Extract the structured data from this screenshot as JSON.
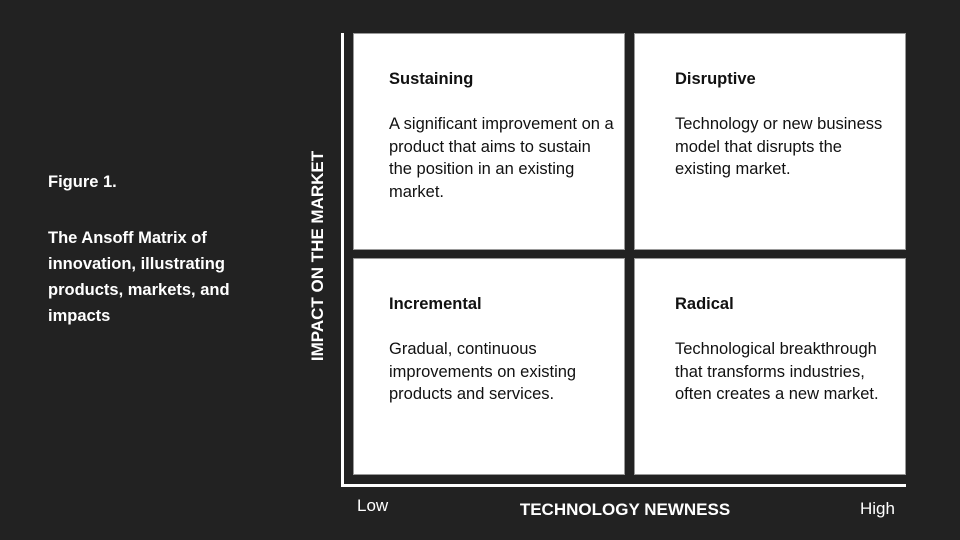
{
  "caption": {
    "figure": "Figure 1.",
    "description": "The Ansoff Matrix of innovation, illustrating products, markets, and impacts"
  },
  "axes": {
    "y_label": "IMPACT ON THE MARKET",
    "x_label": "TECHNOLOGY NEWNESS",
    "x_low": "Low",
    "x_high": "High"
  },
  "quadrants": [
    {
      "title": "Sustaining",
      "text": "A significant improvement on a product that aims to sustain the position in an existing market."
    },
    {
      "title": "Disruptive",
      "text": "Technology or new business model that disrupts the existing market."
    },
    {
      "title": "Incremental",
      "text": "Gradual, continuous improvements on existing products and services."
    },
    {
      "title": "Radical",
      "text": "Technological breakthrough that transforms industries, often creates a new market."
    }
  ]
}
